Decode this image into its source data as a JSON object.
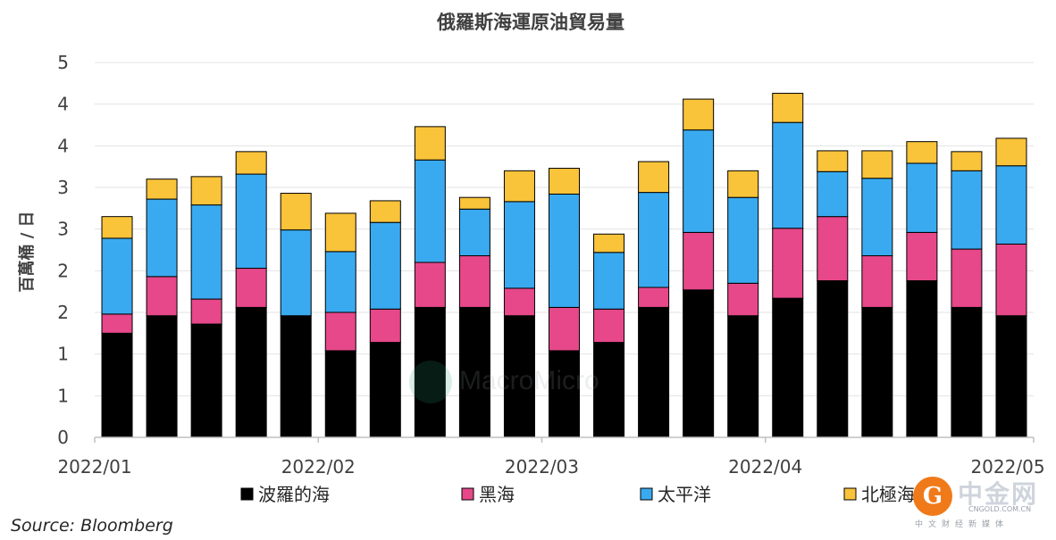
{
  "chart_data": {
    "type": "bar",
    "stacked": true,
    "title": "俄羅斯海運原油貿易量",
    "ylabel": "百萬桶 / 日",
    "xlabel": "",
    "y_tick_labels": [
      "0",
      "1",
      "1",
      "2",
      "2",
      "3",
      "3",
      "4",
      "4",
      "5"
    ],
    "ylim": [
      0,
      4.5
    ],
    "grid": true,
    "legend_position": "bottom",
    "x_tick_labels": [
      "2022/01",
      "2022/02",
      "2022/03",
      "2022/04",
      "2022/05"
    ],
    "x_tick_positions": [
      0,
      5,
      10,
      15,
      20
    ],
    "categories": [
      "2022/01-1",
      "2022/01-2",
      "2022/01-3",
      "2022/01-4",
      "2022/02-1",
      "2022/02-2",
      "2022/02-3",
      "2022/02-4",
      "2022/03-1",
      "2022/03-2",
      "2022/03-3",
      "2022/03-4",
      "2022/04-1",
      "2022/04-2",
      "2022/04-3",
      "2022/04-4",
      "2022/05-1",
      "2022/05-2",
      "2022/05-3",
      "2022/05-4",
      "2022/05-5"
    ],
    "series": [
      {
        "name": "波羅的海",
        "color": "#000000",
        "values": [
          1.25,
          1.46,
          1.36,
          1.56,
          1.46,
          1.04,
          1.14,
          1.56,
          1.56,
          1.46,
          1.04,
          1.14,
          1.56,
          1.77,
          1.46,
          1.67,
          1.88,
          1.56,
          1.88,
          1.56,
          1.46
        ]
      },
      {
        "name": "黑海",
        "color": "#e6488a",
        "values": [
          0.23,
          0.47,
          0.3,
          0.47,
          0.0,
          0.46,
          0.4,
          0.54,
          0.62,
          0.33,
          0.52,
          0.4,
          0.24,
          0.69,
          0.39,
          0.84,
          0.77,
          0.62,
          0.58,
          0.7,
          0.86
        ]
      },
      {
        "name": "太平洋",
        "color": "#3aaaf0",
        "values": [
          0.91,
          0.93,
          1.13,
          1.13,
          1.03,
          0.73,
          1.04,
          1.23,
          0.56,
          1.04,
          1.36,
          0.68,
          1.14,
          1.23,
          1.03,
          1.27,
          0.54,
          0.93,
          0.83,
          0.94,
          0.94
        ]
      },
      {
        "name": "北極海",
        "color": "#f9c33a",
        "values": [
          0.26,
          0.24,
          0.34,
          0.27,
          0.44,
          0.46,
          0.26,
          0.4,
          0.14,
          0.37,
          0.31,
          0.22,
          0.37,
          0.37,
          0.32,
          0.35,
          0.25,
          0.33,
          0.26,
          0.23,
          0.33
        ]
      }
    ]
  },
  "source": "Source: Bloomberg",
  "watermark": "MacroMicro",
  "logo": {
    "mark": "G",
    "name": "中金网",
    "domain": "CNGOLD.COM.CN",
    "tagline": "中文财经新媒体"
  }
}
